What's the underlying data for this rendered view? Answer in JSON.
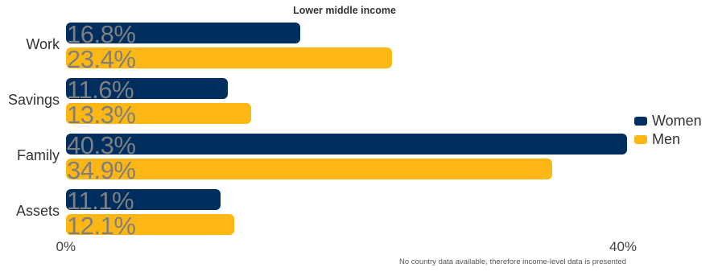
{
  "chart_data": {
    "type": "bar",
    "orientation": "horizontal",
    "title": "Lower middle income",
    "categories": [
      "Work",
      "Savings",
      "Family",
      "Assets"
    ],
    "series": [
      {
        "name": "Women",
        "color": "#002f5f",
        "values": [
          16.8,
          11.6,
          40.3,
          11.1
        ],
        "labels": [
          "16.8%",
          "11.6%",
          "40.3%",
          "11.1%"
        ]
      },
      {
        "name": "Men",
        "color": "#fdb714",
        "values": [
          23.4,
          13.3,
          34.9,
          12.1
        ],
        "labels": [
          "23.4%",
          "13.3%",
          "34.9%",
          "12.1%"
        ]
      }
    ],
    "xlim": [
      0,
      40
    ],
    "x_ticks": [
      {
        "value": 0,
        "label": "0%"
      },
      {
        "value": 40,
        "label": "40%"
      }
    ],
    "grid": false,
    "legend_position": "right",
    "footnote": "No country data available, therefore income-level data is presented"
  }
}
